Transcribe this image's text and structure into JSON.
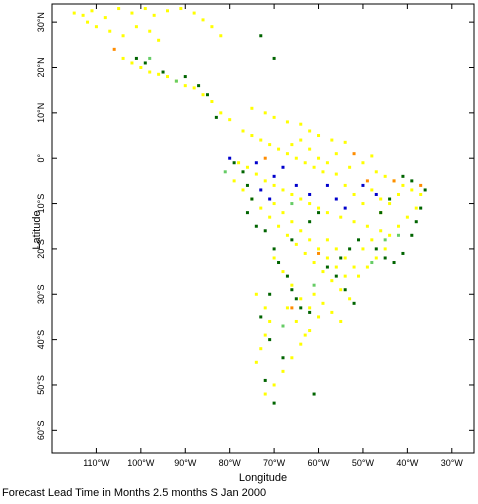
{
  "caption": "Forecast Lead Time in Months 2.5 months S Jan 2000",
  "axes": {
    "xlabel": "Longitude",
    "ylabel": "Latitude",
    "lon_range": [
      -120,
      -25
    ],
    "lat_range": [
      -65,
      34
    ],
    "x_ticks": [
      {
        "lon": -110,
        "label": "110°W"
      },
      {
        "lon": -100,
        "label": "100°W"
      },
      {
        "lon": -90,
        "label": "90°W"
      },
      {
        "lon": -80,
        "label": "80°W"
      },
      {
        "lon": -70,
        "label": "70°W"
      },
      {
        "lon": -60,
        "label": "60°W"
      },
      {
        "lon": -50,
        "label": "50°W"
      },
      {
        "lon": -40,
        "label": "40°W"
      },
      {
        "lon": -30,
        "label": "30°W"
      }
    ],
    "y_ticks": [
      {
        "lat": 30,
        "label": "30°N"
      },
      {
        "lat": 20,
        "label": "20°N"
      },
      {
        "lat": 10,
        "label": "10°N"
      },
      {
        "lat": 0,
        "label": "0°"
      },
      {
        "lat": -10,
        "label": "10°S"
      },
      {
        "lat": -20,
        "label": "20°S"
      },
      {
        "lat": -30,
        "label": "30°S"
      },
      {
        "lat": -40,
        "label": "40°S"
      },
      {
        "lat": -50,
        "label": "50°S"
      },
      {
        "lat": -60,
        "label": "60°S"
      }
    ]
  },
  "colors": {
    "yellow": "#ffff00",
    "green": "#006400",
    "light_green": "#66cc66",
    "orange": "#ff8c00",
    "blue": "#0000cc",
    "frame": "#000000"
  },
  "chart_data": {
    "type": "scatter",
    "description_units": "grid cells in degrees longitude/latitude",
    "series": [
      {
        "color": "yellow",
        "points": [
          [
            -115,
            32
          ],
          [
            -113,
            31.5
          ],
          [
            -111,
            32.5
          ],
          [
            -108,
            31
          ],
          [
            -105,
            33
          ],
          [
            -102,
            32
          ],
          [
            -99,
            33
          ],
          [
            -97,
            31.5
          ],
          [
            -94,
            32.5
          ],
          [
            -91,
            33
          ],
          [
            -88,
            32
          ],
          [
            -86,
            30.5
          ],
          [
            -84,
            29
          ],
          [
            -82,
            27
          ],
          [
            -112,
            30
          ],
          [
            -110,
            29
          ],
          [
            -107,
            28
          ],
          [
            -104,
            27
          ],
          [
            -101,
            29
          ],
          [
            -98,
            28
          ],
          [
            -96,
            26
          ],
          [
            -104,
            22
          ],
          [
            -102,
            21
          ],
          [
            -100,
            20
          ],
          [
            -98,
            19
          ],
          [
            -96,
            18.5
          ],
          [
            -94,
            18
          ],
          [
            -92,
            17
          ],
          [
            -90,
            16
          ],
          [
            -88,
            15.5
          ],
          [
            -86,
            14
          ],
          [
            -84,
            12.5
          ],
          [
            -82,
            10
          ],
          [
            -80,
            8.5
          ],
          [
            -75,
            11
          ],
          [
            -72,
            10
          ],
          [
            -70,
            9
          ],
          [
            -67,
            8
          ],
          [
            -64,
            7.5
          ],
          [
            -62,
            6
          ],
          [
            -60,
            5
          ],
          [
            -57,
            4
          ],
          [
            -54,
            3.5
          ],
          [
            -77,
            6
          ],
          [
            -75,
            5
          ],
          [
            -73,
            4
          ],
          [
            -71,
            3
          ],
          [
            -69,
            2
          ],
          [
            -67,
            1
          ],
          [
            -65,
            0
          ],
          [
            -63,
            -1
          ],
          [
            -61,
            -2
          ],
          [
            -59,
            -3
          ],
          [
            -56,
            -3.5
          ],
          [
            -53,
            -2
          ],
          [
            -50,
            -1
          ],
          [
            -48,
            0.5
          ],
          [
            -78,
            -1
          ],
          [
            -76,
            -2
          ],
          [
            -74,
            -3.5
          ],
          [
            -72,
            -5
          ],
          [
            -70,
            -6
          ],
          [
            -68,
            -7
          ],
          [
            -66,
            -8
          ],
          [
            -64,
            -9
          ],
          [
            -62,
            -10
          ],
          [
            -60,
            -11
          ],
          [
            -58,
            -12
          ],
          [
            -55,
            -13
          ],
          [
            -52,
            -14
          ],
          [
            -49,
            -15
          ],
          [
            -46,
            -16
          ],
          [
            -79,
            -5
          ],
          [
            -77,
            -7
          ],
          [
            -75,
            -9
          ],
          [
            -73,
            -11
          ],
          [
            -71,
            -13
          ],
          [
            -69,
            -15
          ],
          [
            -67,
            -17
          ],
          [
            -65,
            -19
          ],
          [
            -63,
            -21
          ],
          [
            -61,
            -23
          ],
          [
            -59,
            -25
          ],
          [
            -57,
            -27
          ],
          [
            -55,
            -29
          ],
          [
            -53,
            -31
          ],
          [
            -47,
            -3
          ],
          [
            -45,
            -4
          ],
          [
            -43,
            -5
          ],
          [
            -41,
            -6
          ],
          [
            -39,
            -7
          ],
          [
            -37,
            -8
          ],
          [
            -38,
            -11
          ],
          [
            -40,
            -13
          ],
          [
            -42,
            -15
          ],
          [
            -44,
            -17
          ],
          [
            -45,
            -20
          ],
          [
            -47,
            -22
          ],
          [
            -49,
            -24
          ],
          [
            -51,
            -26
          ],
          [
            -70,
            -22
          ],
          [
            -68,
            -25
          ],
          [
            -66,
            -28
          ],
          [
            -64,
            -31
          ],
          [
            -62,
            -33
          ],
          [
            -60,
            -35
          ],
          [
            -62,
            -38
          ],
          [
            -64,
            -41
          ],
          [
            -66,
            -44
          ],
          [
            -68,
            -47
          ],
          [
            -70,
            -50
          ],
          [
            -72,
            -52
          ],
          [
            -74,
            -30
          ],
          [
            -72,
            -33
          ],
          [
            -71,
            -36
          ],
          [
            -72,
            -39
          ],
          [
            -73,
            -42
          ],
          [
            -74,
            -45
          ],
          [
            -58,
            -18
          ],
          [
            -56,
            -20
          ],
          [
            -54,
            -22
          ],
          [
            -52,
            -24
          ],
          [
            -50,
            -20
          ],
          [
            -48,
            -18
          ],
          [
            -46,
            -12
          ],
          [
            -44,
            -10
          ],
          [
            -42,
            -8
          ],
          [
            -66,
            3
          ],
          [
            -64,
            4
          ],
          [
            -62,
            2
          ],
          [
            -60,
            0
          ],
          [
            -58,
            -1
          ],
          [
            -56,
            1
          ],
          [
            -54,
            -6
          ],
          [
            -52,
            -8
          ],
          [
            -50,
            -10
          ],
          [
            -48,
            -7
          ],
          [
            -46,
            -9
          ],
          [
            -70,
            -10
          ],
          [
            -68,
            -12
          ],
          [
            -66,
            -14
          ],
          [
            -64,
            -16
          ],
          [
            -62,
            -18
          ],
          [
            -60,
            -20
          ],
          [
            -58,
            -22
          ],
          [
            -56,
            -24
          ],
          [
            -54,
            -26
          ],
          [
            -67,
            -33
          ],
          [
            -65,
            -36
          ],
          [
            -63,
            -39
          ],
          [
            -61,
            -30
          ],
          [
            -59,
            -32
          ],
          [
            -57,
            -34
          ],
          [
            -55,
            -36
          ]
        ]
      },
      {
        "color": "green",
        "points": [
          [
            -101,
            22
          ],
          [
            -99,
            21
          ],
          [
            -95,
            19
          ],
          [
            -90,
            18
          ],
          [
            -87,
            16
          ],
          [
            -85,
            14
          ],
          [
            -70,
            22
          ],
          [
            -73,
            27
          ],
          [
            -83,
            9
          ],
          [
            -79,
            -1
          ],
          [
            -77,
            -3
          ],
          [
            -76,
            -6
          ],
          [
            -75,
            -9
          ],
          [
            -76,
            -12
          ],
          [
            -74,
            -15
          ],
          [
            -72,
            -16
          ],
          [
            -70,
            -20
          ],
          [
            -69,
            -23
          ],
          [
            -67,
            -26
          ],
          [
            -66,
            -29
          ],
          [
            -65,
            -31
          ],
          [
            -64,
            -33
          ],
          [
            -62,
            -34
          ],
          [
            -58,
            -24
          ],
          [
            -56,
            -26
          ],
          [
            -54,
            -29
          ],
          [
            -52,
            -32
          ],
          [
            -55,
            -22
          ],
          [
            -53,
            -20
          ],
          [
            -51,
            -18
          ],
          [
            -47,
            -20
          ],
          [
            -45,
            -22
          ],
          [
            -43,
            -23
          ],
          [
            -41,
            -21
          ],
          [
            -39,
            -17
          ],
          [
            -38,
            -14
          ],
          [
            -37,
            -11
          ],
          [
            -36,
            -7
          ],
          [
            -39,
            -5
          ],
          [
            -41,
            -4
          ],
          [
            -60,
            -12
          ],
          [
            -62,
            -14
          ],
          [
            -66,
            -18
          ],
          [
            -71,
            -30
          ],
          [
            -73,
            -35
          ],
          [
            -71,
            -40
          ],
          [
            -68,
            -44
          ],
          [
            -72,
            -49
          ],
          [
            -70,
            -54
          ],
          [
            -61,
            -52
          ],
          [
            -46,
            -12
          ],
          [
            -44,
            -9
          ]
        ]
      },
      {
        "color": "light_green",
        "points": [
          [
            -98,
            22
          ],
          [
            -92,
            17
          ],
          [
            -81,
            -3
          ],
          [
            -66,
            -10
          ],
          [
            -61,
            -28
          ],
          [
            -45,
            -18
          ],
          [
            -42,
            -17
          ],
          [
            -48,
            -23
          ],
          [
            -68,
            -37
          ]
        ]
      },
      {
        "color": "orange",
        "points": [
          [
            -106,
            24
          ],
          [
            -72,
            0
          ],
          [
            -49,
            -5
          ],
          [
            -43,
            -5
          ],
          [
            -52,
            1
          ],
          [
            -60,
            -21
          ],
          [
            -37,
            -6
          ],
          [
            -66,
            -33
          ]
        ]
      },
      {
        "color": "blue",
        "points": [
          [
            -80,
            0
          ],
          [
            -74,
            -1
          ],
          [
            -70,
            -4
          ],
          [
            -68,
            -2
          ],
          [
            -65,
            -6
          ],
          [
            -62,
            -8
          ],
          [
            -58,
            -6
          ],
          [
            -56,
            -9
          ],
          [
            -54,
            -11
          ],
          [
            -50,
            -6
          ],
          [
            -47,
            -8
          ],
          [
            -73,
            -7
          ],
          [
            -71,
            -9
          ]
        ]
      }
    ]
  }
}
